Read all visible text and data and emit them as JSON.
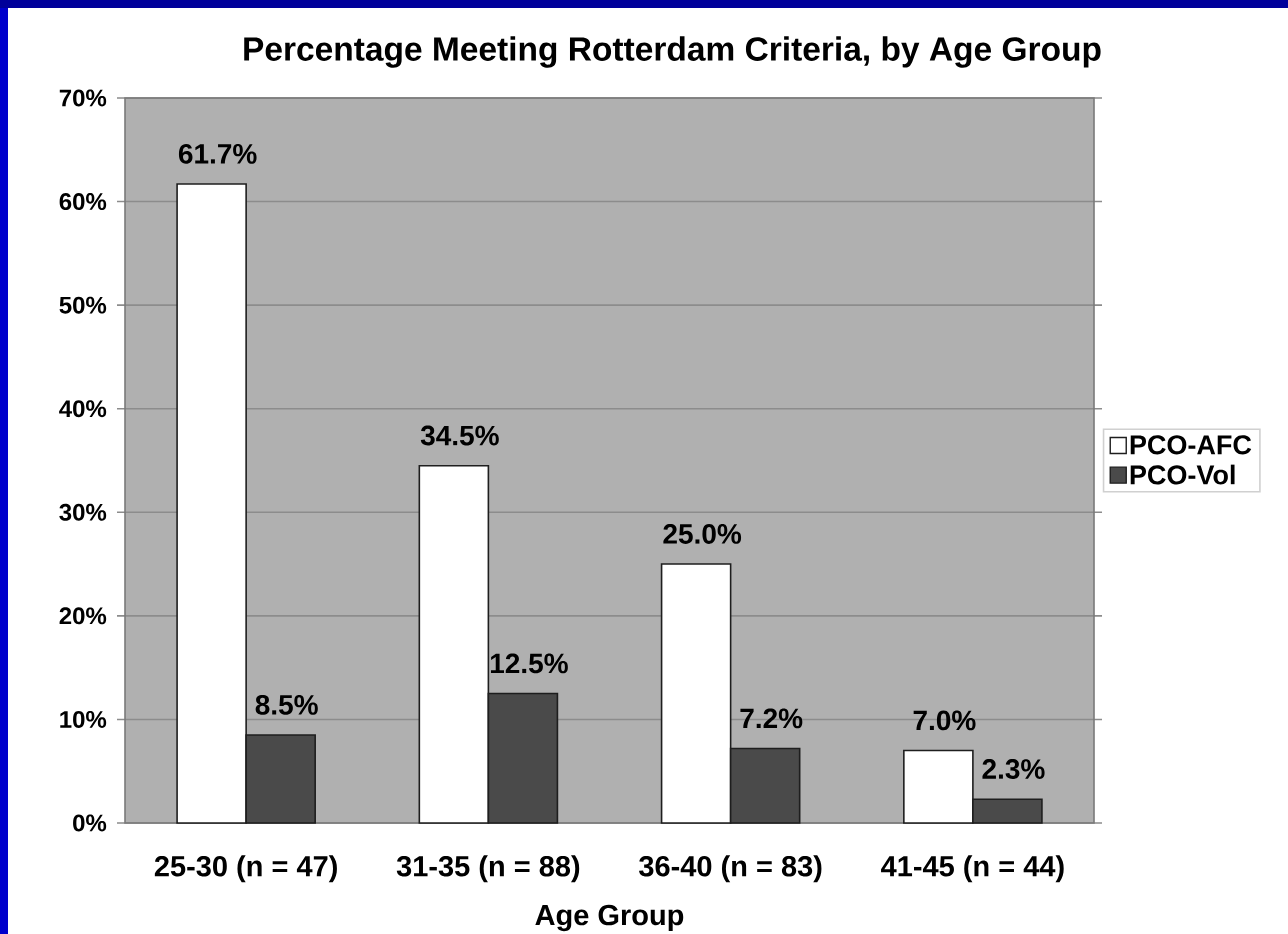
{
  "chart_data": {
    "type": "bar",
    "title": "Percentage Meeting Rotterdam Criteria, by Age Group",
    "xlabel": "Age Group",
    "categories": [
      "25-30 (n = 47)",
      "31-35 (n = 88)",
      "36-40 (n = 83)",
      "41-45 (n = 44)"
    ],
    "series": [
      {
        "name": "PCO-AFC",
        "color": "#ffffff",
        "values": [
          61.7,
          34.5,
          25.0,
          7.0
        ],
        "value_labels": [
          "61.7%",
          "34.5%",
          "25.0%",
          "7.0%"
        ]
      },
      {
        "name": "PCO-Vol",
        "color": "#4a4a4a",
        "values": [
          8.5,
          12.5,
          7.2,
          2.3
        ],
        "value_labels": [
          "8.5%",
          "12.5%",
          "7.2%",
          "2.3%"
        ]
      }
    ],
    "ylim": [
      0,
      70
    ],
    "yticks": [
      {
        "value": 0,
        "label": "0%"
      },
      {
        "value": 10,
        "label": "10%"
      },
      {
        "value": 20,
        "label": "20%"
      },
      {
        "value": 30,
        "label": "30%"
      },
      {
        "value": 40,
        "label": "40%"
      },
      {
        "value": 50,
        "label": "50%"
      },
      {
        "value": 60,
        "label": "60%"
      },
      {
        "value": 70,
        "label": "70%"
      }
    ],
    "grid": "y",
    "legend": "right"
  }
}
